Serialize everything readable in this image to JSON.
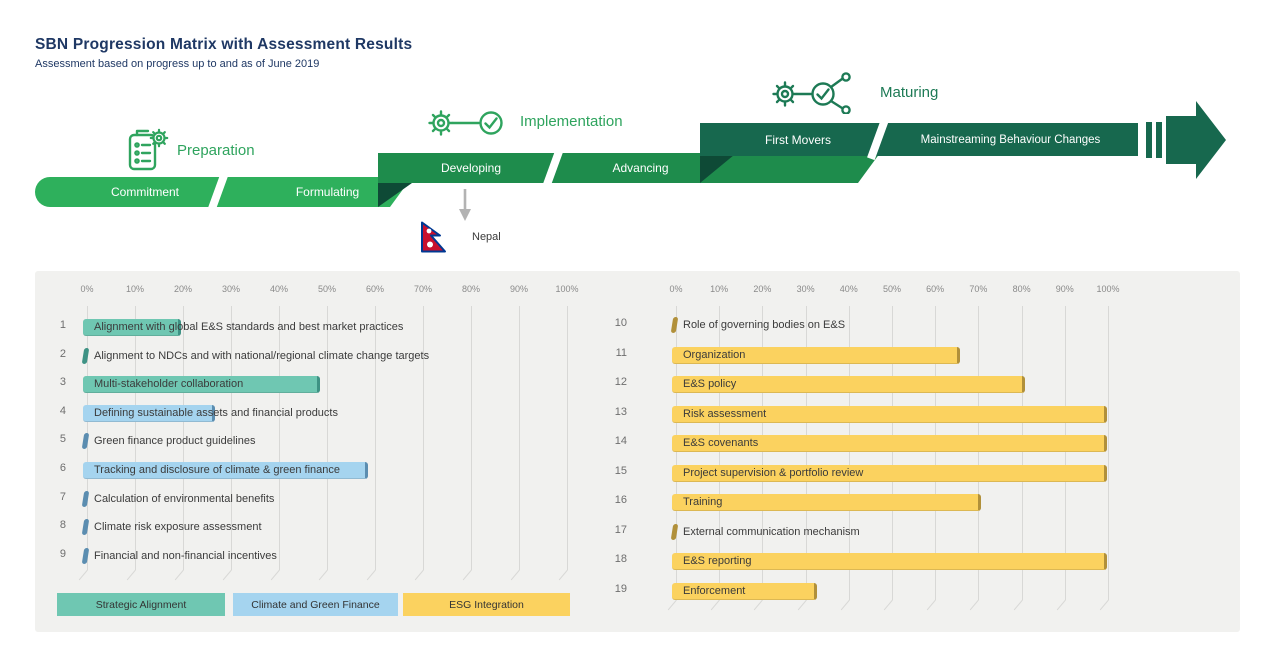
{
  "title": "SBN Progression Matrix with Assessment Results",
  "subtitle": "Assessment based on progress up to and as of June 2019",
  "stages": [
    {
      "name": "Preparation",
      "icon": "checklist-gear-icon",
      "segments": [
        "Commitment",
        "Formulating"
      ]
    },
    {
      "name": "Implementation",
      "icon": "gear-check-icon",
      "segments": [
        "Developing",
        "Advancing"
      ]
    },
    {
      "name": "Maturing",
      "icon": "gear-network-icon",
      "segments": [
        "First Movers",
        "Mainstreaming Behaviour Changes"
      ]
    }
  ],
  "marker": {
    "country": "Nepal",
    "points_to_segment": "Developing"
  },
  "colors": {
    "title_navy": "#1F3864",
    "stage_label_green": "#2FA45E",
    "band_preparation": "#2EB05C",
    "band_implementation": "#1E8C4C",
    "band_maturing": "#17684E",
    "fold_dark": "#0E4A36",
    "arrow_dark_teal": "#17684E",
    "panel_bg": "#F1F1EF",
    "categories": {
      "strategic-alignment": {
        "label": "Strategic Alignment",
        "fill": "#6FC7B2",
        "edge": "#3E9284"
      },
      "climate-green-finance": {
        "label": "Climate and Green Finance",
        "fill": "#A5D4EF",
        "edge": "#5B8DB0"
      },
      "esg-integration": {
        "label": "ESG Integration",
        "fill": "#FBD25F",
        "edge": "#B1903A"
      }
    }
  },
  "legend": [
    "strategic-alignment",
    "climate-green-finance",
    "esg-integration"
  ],
  "chart_data": [
    {
      "type": "bar",
      "orientation": "horizontal",
      "x_ticks": [
        "0%",
        "10%",
        "20%",
        "30%",
        "40%",
        "50%",
        "60%",
        "70%",
        "80%",
        "90%",
        "100%"
      ],
      "xlim": [
        0,
        100
      ],
      "grid": true,
      "rows": [
        {
          "num": 1,
          "label": "Alignment with global E&S standards and best market practices",
          "value": 19,
          "category": "strategic-alignment"
        },
        {
          "num": 2,
          "label": "Alignment to NDCs and with national/regional climate change targets",
          "value": 1,
          "category": "strategic-alignment"
        },
        {
          "num": 3,
          "label": "Multi-stakeholder collaboration",
          "value": 48,
          "category": "strategic-alignment"
        },
        {
          "num": 4,
          "label": "Defining sustainable assets and financial products",
          "value": 26,
          "category": "climate-green-finance"
        },
        {
          "num": 5,
          "label": "Green finance product guidelines",
          "value": 1,
          "category": "climate-green-finance"
        },
        {
          "num": 6,
          "label": "Tracking and disclosure of climate & green finance",
          "value": 58,
          "category": "climate-green-finance"
        },
        {
          "num": 7,
          "label": "Calculation of environmental benefits",
          "value": 1,
          "category": "climate-green-finance"
        },
        {
          "num": 8,
          "label": "Climate risk exposure assessment",
          "value": 1,
          "category": "climate-green-finance"
        },
        {
          "num": 9,
          "label": "Financial and non-financial incentives",
          "value": 1,
          "category": "climate-green-finance"
        }
      ]
    },
    {
      "type": "bar",
      "orientation": "horizontal",
      "x_ticks": [
        "0%",
        "10%",
        "20%",
        "30%",
        "40%",
        "50%",
        "60%",
        "70%",
        "80%",
        "90%",
        "100%"
      ],
      "xlim": [
        0,
        100
      ],
      "grid": true,
      "rows": [
        {
          "num": 10,
          "label": "Role of governing bodies on E&S",
          "value": 1,
          "category": "esg-integration"
        },
        {
          "num": 11,
          "label": "Organization",
          "value": 65,
          "category": "esg-integration"
        },
        {
          "num": 12,
          "label": "E&S policy",
          "value": 80,
          "category": "esg-integration"
        },
        {
          "num": 13,
          "label": "Risk assessment",
          "value": 99,
          "category": "esg-integration"
        },
        {
          "num": 14,
          "label": "E&S covenants",
          "value": 99,
          "category": "esg-integration"
        },
        {
          "num": 15,
          "label": "Project supervision & portfolio review",
          "value": 99,
          "category": "esg-integration"
        },
        {
          "num": 16,
          "label": "Training",
          "value": 70,
          "category": "esg-integration"
        },
        {
          "num": 17,
          "label": "External communication mechanism",
          "value": 1,
          "category": "esg-integration"
        },
        {
          "num": 18,
          "label": "E&S reporting",
          "value": 99,
          "category": "esg-integration"
        },
        {
          "num": 19,
          "label": "Enforcement",
          "value": 32,
          "category": "esg-integration"
        }
      ]
    }
  ]
}
